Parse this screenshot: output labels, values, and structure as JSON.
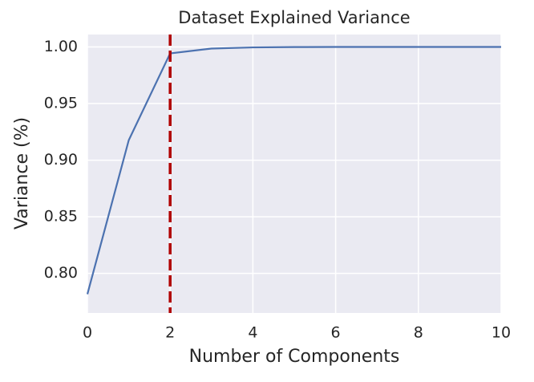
{
  "chart_data": {
    "type": "line",
    "title": "Dataset Explained Variance",
    "x_label": "Number of Components",
    "y_label": "Variance (%)",
    "x": [
      0,
      1,
      2,
      3,
      4,
      5,
      6,
      7,
      8,
      9,
      10
    ],
    "series": [
      {
        "color": "#4c72b0",
        "values": [
          0.7816,
          0.9177,
          0.9943,
          0.9986,
          0.9996,
          0.9999,
          1.0,
          1.0,
          1.0,
          1.0,
          1.0
        ]
      }
    ],
    "xlim": [
      0,
      10
    ],
    "xticks": [
      0,
      2,
      4,
      6,
      8,
      10
    ],
    "ylim": [
      0.765,
      1.011
    ],
    "yticks": [
      {
        "value": 0.8,
        "label": "0.80"
      },
      {
        "value": 0.85,
        "label": "0.85"
      },
      {
        "value": 0.9,
        "label": "0.90"
      },
      {
        "value": 0.95,
        "label": "0.95"
      },
      {
        "value": 1.0,
        "label": "1.00"
      }
    ],
    "grid": true,
    "vline": {
      "x": 2,
      "color": "#b00000"
    }
  }
}
